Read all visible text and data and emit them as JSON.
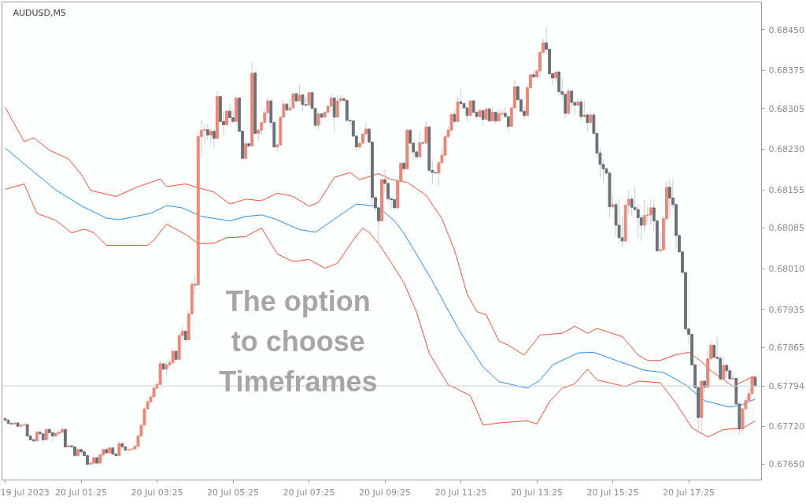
{
  "chart_data": {
    "type": "candlestick",
    "title": "AUDUSD,M5",
    "annotations": [
      "The option\nto choose\nTimeframes"
    ],
    "xlim": [
      "2023-07-19T23:20",
      "2023-07-20T19:20"
    ],
    "ylim": [
      0.67621,
      0.68501
    ],
    "xticks": [
      {
        "value": "2023-07-19T23:25",
        "label": "19 Jul 2023"
      },
      {
        "value": "2023-07-20T01:25",
        "label": "20 Jul 01:25"
      },
      {
        "value": "2023-07-20T03:25",
        "label": "20 Jul 03:25"
      },
      {
        "value": "2023-07-20T05:25",
        "label": "20 Jul 05:25"
      },
      {
        "value": "2023-07-20T07:25",
        "label": "20 Jul 07:25"
      },
      {
        "value": "2023-07-20T09:25",
        "label": "20 Jul 09:25"
      },
      {
        "value": "2023-07-20T11:25",
        "label": "20 Jul 11:25"
      },
      {
        "value": "2023-07-20T13:25",
        "label": "20 Jul 13:25"
      },
      {
        "value": "2023-07-20T15:25",
        "label": "20 Jul 15:25"
      },
      {
        "value": "2023-07-20T17:25",
        "label": "20 Jul 17:25"
      }
    ],
    "yticks": [
      {
        "value": 0.6765,
        "label": "0.67650"
      },
      {
        "value": 0.6772,
        "label": "0.67720"
      },
      {
        "value": 0.67865,
        "label": "0.67865"
      },
      {
        "value": 0.67935,
        "label": "0.67935"
      },
      {
        "value": 0.6801,
        "label": "0.68010"
      },
      {
        "value": 0.68085,
        "label": "0.68085"
      },
      {
        "value": 0.68155,
        "label": "0.68155"
      },
      {
        "value": 0.6823,
        "label": "0.68230"
      },
      {
        "value": 0.68305,
        "label": "0.68305"
      },
      {
        "value": 0.68375,
        "label": "0.68375"
      },
      {
        "value": 0.6845,
        "label": "0.68450"
      }
    ],
    "ref_lines": [
      {
        "axis": "y",
        "value": 0.67794,
        "label": "0.67794",
        "color": "#c8ccd4"
      }
    ],
    "x": [
      "2023-07-19T23:25",
      "2023-07-19T23:30",
      "2023-07-19T23:35",
      "2023-07-19T23:40",
      "2023-07-19T23:45",
      "2023-07-19T23:50",
      "2023-07-19T23:55",
      "2023-07-20T00:00",
      "2023-07-20T00:05",
      "2023-07-20T00:10",
      "2023-07-20T00:15",
      "2023-07-20T00:20",
      "2023-07-20T00:25",
      "2023-07-20T00:30",
      "2023-07-20T00:35",
      "2023-07-20T00:40",
      "2023-07-20T00:45",
      "2023-07-20T00:50",
      "2023-07-20T00:55",
      "2023-07-20T01:00",
      "2023-07-20T01:05",
      "2023-07-20T01:10",
      "2023-07-20T01:15",
      "2023-07-20T01:20",
      "2023-07-20T01:25",
      "2023-07-20T01:30",
      "2023-07-20T01:35",
      "2023-07-20T01:40",
      "2023-07-20T01:45",
      "2023-07-20T01:50",
      "2023-07-20T01:55",
      "2023-07-20T02:00",
      "2023-07-20T02:05",
      "2023-07-20T02:10",
      "2023-07-20T02:15",
      "2023-07-20T02:20",
      "2023-07-20T02:25",
      "2023-07-20T02:30",
      "2023-07-20T02:35",
      "2023-07-20T02:40",
      "2023-07-20T02:45",
      "2023-07-20T02:50",
      "2023-07-20T02:55",
      "2023-07-20T03:00",
      "2023-07-20T03:05",
      "2023-07-20T03:10",
      "2023-07-20T03:15",
      "2023-07-20T03:20",
      "2023-07-20T03:25",
      "2023-07-20T03:30",
      "2023-07-20T03:35",
      "2023-07-20T03:40",
      "2023-07-20T03:45",
      "2023-07-20T03:50",
      "2023-07-20T03:55",
      "2023-07-20T04:00",
      "2023-07-20T04:05",
      "2023-07-20T04:10",
      "2023-07-20T04:15",
      "2023-07-20T04:20",
      "2023-07-20T04:25",
      "2023-07-20T04:30",
      "2023-07-20T04:35",
      "2023-07-20T04:40",
      "2023-07-20T04:45",
      "2023-07-20T04:50",
      "2023-07-20T04:55",
      "2023-07-20T05:00",
      "2023-07-20T05:05",
      "2023-07-20T05:10",
      "2023-07-20T05:15",
      "2023-07-20T05:20",
      "2023-07-20T05:25",
      "2023-07-20T05:30",
      "2023-07-20T05:35",
      "2023-07-20T05:40",
      "2023-07-20T05:45",
      "2023-07-20T05:50",
      "2023-07-20T05:55",
      "2023-07-20T06:00",
      "2023-07-20T06:05",
      "2023-07-20T06:10",
      "2023-07-20T06:15",
      "2023-07-20T06:20",
      "2023-07-20T06:25",
      "2023-07-20T06:30",
      "2023-07-20T06:35",
      "2023-07-20T06:40",
      "2023-07-20T06:45",
      "2023-07-20T06:50",
      "2023-07-20T06:55",
      "2023-07-20T07:00",
      "2023-07-20T07:05",
      "2023-07-20T07:10",
      "2023-07-20T07:15",
      "2023-07-20T07:20",
      "2023-07-20T07:25",
      "2023-07-20T07:30",
      "2023-07-20T07:35",
      "2023-07-20T07:40",
      "2023-07-20T07:45",
      "2023-07-20T07:50",
      "2023-07-20T07:55",
      "2023-07-20T08:00",
      "2023-07-20T08:05",
      "2023-07-20T08:10",
      "2023-07-20T08:15",
      "2023-07-20T08:20",
      "2023-07-20T08:25",
      "2023-07-20T08:30",
      "2023-07-20T08:35",
      "2023-07-20T08:40",
      "2023-07-20T08:45",
      "2023-07-20T08:50",
      "2023-07-20T08:55",
      "2023-07-20T09:00",
      "2023-07-20T09:05",
      "2023-07-20T09:10",
      "2023-07-20T09:15",
      "2023-07-20T09:20",
      "2023-07-20T09:25",
      "2023-07-20T09:30",
      "2023-07-20T09:35",
      "2023-07-20T09:40",
      "2023-07-20T09:45",
      "2023-07-20T09:50",
      "2023-07-20T09:55",
      "2023-07-20T10:00",
      "2023-07-20T10:05",
      "2023-07-20T10:10",
      "2023-07-20T10:15",
      "2023-07-20T10:20",
      "2023-07-20T10:25",
      "2023-07-20T10:30",
      "2023-07-20T10:35",
      "2023-07-20T10:40",
      "2023-07-20T10:45",
      "2023-07-20T10:50",
      "2023-07-20T10:55",
      "2023-07-20T11:00",
      "2023-07-20T11:05",
      "2023-07-20T11:10",
      "2023-07-20T11:15",
      "2023-07-20T11:20",
      "2023-07-20T11:25",
      "2023-07-20T11:30",
      "2023-07-20T11:35",
      "2023-07-20T11:40",
      "2023-07-20T11:45",
      "2023-07-20T11:50",
      "2023-07-20T11:55",
      "2023-07-20T12:00",
      "2023-07-20T12:05",
      "2023-07-20T12:10",
      "2023-07-20T12:15",
      "2023-07-20T12:20",
      "2023-07-20T12:25",
      "2023-07-20T12:30",
      "2023-07-20T12:35",
      "2023-07-20T12:40",
      "2023-07-20T12:45",
      "2023-07-20T12:50",
      "2023-07-20T12:55",
      "2023-07-20T13:00",
      "2023-07-20T13:05",
      "2023-07-20T13:10",
      "2023-07-20T13:15",
      "2023-07-20T13:20",
      "2023-07-20T13:25",
      "2023-07-20T13:30",
      "2023-07-20T13:35",
      "2023-07-20T13:40",
      "2023-07-20T13:45",
      "2023-07-20T13:50",
      "2023-07-20T13:55",
      "2023-07-20T14:00",
      "2023-07-20T14:05",
      "2023-07-20T14:10",
      "2023-07-20T14:15",
      "2023-07-20T14:20",
      "2023-07-20T14:25",
      "2023-07-20T14:30",
      "2023-07-20T14:35",
      "2023-07-20T14:40",
      "2023-07-20T14:45",
      "2023-07-20T14:50",
      "2023-07-20T14:55",
      "2023-07-20T15:00",
      "2023-07-20T15:05",
      "2023-07-20T15:10",
      "2023-07-20T15:15",
      "2023-07-20T15:20",
      "2023-07-20T15:25",
      "2023-07-20T15:30",
      "2023-07-20T15:35",
      "2023-07-20T15:40",
      "2023-07-20T15:45",
      "2023-07-20T15:50",
      "2023-07-20T15:55",
      "2023-07-20T16:00",
      "2023-07-20T16:05",
      "2023-07-20T16:10",
      "2023-07-20T16:15",
      "2023-07-20T16:20",
      "2023-07-20T16:25",
      "2023-07-20T16:30",
      "2023-07-20T16:35",
      "2023-07-20T16:40",
      "2023-07-20T16:45",
      "2023-07-20T16:50",
      "2023-07-20T16:55",
      "2023-07-20T17:00",
      "2023-07-20T17:05",
      "2023-07-20T17:10",
      "2023-07-20T17:15",
      "2023-07-20T17:20",
      "2023-07-20T17:25",
      "2023-07-20T17:30",
      "2023-07-20T17:35",
      "2023-07-20T17:40",
      "2023-07-20T17:45",
      "2023-07-20T17:50",
      "2023-07-20T17:55",
      "2023-07-20T18:00",
      "2023-07-20T18:05",
      "2023-07-20T18:10",
      "2023-07-20T18:15",
      "2023-07-20T18:20",
      "2023-07-20T18:25",
      "2023-07-20T18:30",
      "2023-07-20T18:35",
      "2023-07-20T18:40",
      "2023-07-20T18:45",
      "2023-07-20T18:50",
      "2023-07-20T18:55",
      "2023-07-20T19:00",
      "2023-07-20T19:05",
      "2023-07-20T19:10"
    ],
    "ohlc": [
      [
        0.67734,
        0.67736,
        0.67729,
        0.67731
      ],
      [
        0.67731,
        0.67733,
        0.67723,
        0.67725
      ],
      [
        0.67725,
        0.67727,
        0.67722,
        0.67724
      ],
      [
        0.67724,
        0.67728,
        0.67722,
        0.67726
      ],
      [
        0.67726,
        0.67728,
        0.67718,
        0.6772
      ],
      [
        0.6772,
        0.67724,
        0.67718,
        0.67722
      ],
      [
        0.67722,
        0.67725,
        0.6772,
        0.67723
      ],
      [
        0.67723,
        0.67725,
        0.677,
        0.67702
      ],
      [
        0.67702,
        0.67704,
        0.67693,
        0.67695
      ],
      [
        0.67695,
        0.67697,
        0.6769,
        0.67693
      ],
      [
        0.67693,
        0.67711,
        0.67691,
        0.67709
      ],
      [
        0.67709,
        0.67711,
        0.67704,
        0.67706
      ],
      [
        0.67706,
        0.67708,
        0.67688,
        0.67695
      ],
      [
        0.67695,
        0.67716,
        0.67693,
        0.67714
      ],
      [
        0.67714,
        0.67716,
        0.67706,
        0.67708
      ],
      [
        0.67708,
        0.6771,
        0.6769,
        0.67702
      ],
      [
        0.67702,
        0.67709,
        0.677,
        0.67707
      ],
      [
        0.67707,
        0.67711,
        0.67705,
        0.67709
      ],
      [
        0.67709,
        0.67721,
        0.67707,
        0.67714
      ],
      [
        0.67714,
        0.67716,
        0.6768,
        0.67682
      ],
      [
        0.67682,
        0.67686,
        0.6768,
        0.67684
      ],
      [
        0.67684,
        0.67686,
        0.6768,
        0.67682
      ],
      [
        0.67682,
        0.67684,
        0.67664,
        0.67666
      ],
      [
        0.67666,
        0.67679,
        0.67664,
        0.67677
      ],
      [
        0.67677,
        0.67679,
        0.67671,
        0.67673
      ],
      [
        0.67673,
        0.67675,
        0.67664,
        0.67666
      ],
      [
        0.67666,
        0.67668,
        0.67645,
        0.6765
      ],
      [
        0.6765,
        0.67654,
        0.67647,
        0.67652
      ],
      [
        0.67652,
        0.67664,
        0.67648,
        0.67662
      ],
      [
        0.67662,
        0.67664,
        0.6765,
        0.67652
      ],
      [
        0.67652,
        0.67669,
        0.6765,
        0.67667
      ],
      [
        0.67667,
        0.67679,
        0.67665,
        0.67677
      ],
      [
        0.67677,
        0.67679,
        0.67669,
        0.67671
      ],
      [
        0.67671,
        0.67684,
        0.67669,
        0.6768
      ],
      [
        0.6768,
        0.67682,
        0.67667,
        0.67669
      ],
      [
        0.67669,
        0.67671,
        0.67664,
        0.67666
      ],
      [
        0.67666,
        0.67692,
        0.67664,
        0.67688
      ],
      [
        0.67688,
        0.6769,
        0.6768,
        0.67682
      ],
      [
        0.67682,
        0.67684,
        0.67674,
        0.67676
      ],
      [
        0.67676,
        0.67679,
        0.67674,
        0.67677
      ],
      [
        0.67677,
        0.6768,
        0.67675,
        0.67678
      ],
      [
        0.67678,
        0.67685,
        0.67676,
        0.67683
      ],
      [
        0.67683,
        0.67704,
        0.67681,
        0.67702
      ],
      [
        0.67702,
        0.67724,
        0.677,
        0.67722
      ],
      [
        0.67722,
        0.67754,
        0.6772,
        0.67752
      ],
      [
        0.67752,
        0.67769,
        0.6775,
        0.67765
      ],
      [
        0.67765,
        0.67778,
        0.67763,
        0.67774
      ],
      [
        0.67774,
        0.67794,
        0.67772,
        0.6779
      ],
      [
        0.6779,
        0.67801,
        0.67788,
        0.67797
      ],
      [
        0.67797,
        0.6784,
        0.67795,
        0.67835
      ],
      [
        0.67835,
        0.67837,
        0.67823,
        0.67825
      ],
      [
        0.67825,
        0.67838,
        0.67812,
        0.67833
      ],
      [
        0.67833,
        0.67841,
        0.67831,
        0.67837
      ],
      [
        0.67837,
        0.67863,
        0.67835,
        0.67858
      ],
      [
        0.67858,
        0.6786,
        0.6784,
        0.67843
      ],
      [
        0.67843,
        0.67892,
        0.67841,
        0.67887
      ],
      [
        0.67887,
        0.67903,
        0.67875,
        0.67895
      ],
      [
        0.67895,
        0.67897,
        0.67877,
        0.67879
      ],
      [
        0.67879,
        0.67935,
        0.67877,
        0.67927
      ],
      [
        0.67927,
        0.67987,
        0.67925,
        0.67981
      ],
      [
        0.67981,
        0.67999,
        0.67963,
        0.6798
      ],
      [
        0.6798,
        0.68262,
        0.67978,
        0.68253
      ],
      [
        0.68253,
        0.68285,
        0.68215,
        0.68265
      ],
      [
        0.68265,
        0.68277,
        0.6824,
        0.68266
      ],
      [
        0.68266,
        0.68277,
        0.68246,
        0.68256
      ],
      [
        0.68256,
        0.68268,
        0.6824,
        0.68263
      ],
      [
        0.68263,
        0.68266,
        0.68232,
        0.6825
      ],
      [
        0.6825,
        0.68336,
        0.68247,
        0.68327
      ],
      [
        0.68327,
        0.68329,
        0.68279,
        0.68281
      ],
      [
        0.68281,
        0.683,
        0.68255,
        0.68275
      ],
      [
        0.68275,
        0.68302,
        0.68273,
        0.683
      ],
      [
        0.683,
        0.68314,
        0.68286,
        0.68288
      ],
      [
        0.68288,
        0.68302,
        0.68279,
        0.68281
      ],
      [
        0.68281,
        0.68326,
        0.68279,
        0.68324
      ],
      [
        0.68324,
        0.68326,
        0.68261,
        0.68263
      ],
      [
        0.68263,
        0.68265,
        0.68211,
        0.68213
      ],
      [
        0.68213,
        0.6825,
        0.68211,
        0.6824
      ],
      [
        0.6824,
        0.68242,
        0.68234,
        0.68236
      ],
      [
        0.68236,
        0.6839,
        0.68234,
        0.6837
      ],
      [
        0.6837,
        0.68374,
        0.68257,
        0.68259
      ],
      [
        0.68259,
        0.68267,
        0.68244,
        0.68265
      ],
      [
        0.68265,
        0.68283,
        0.68255,
        0.68279
      ],
      [
        0.68279,
        0.68305,
        0.68277,
        0.68297
      ],
      [
        0.68297,
        0.68327,
        0.68295,
        0.68319
      ],
      [
        0.68319,
        0.68321,
        0.68267,
        0.68279
      ],
      [
        0.68279,
        0.68281,
        0.68232,
        0.68234
      ],
      [
        0.68234,
        0.6824,
        0.68224,
        0.68238
      ],
      [
        0.68238,
        0.68291,
        0.68236,
        0.68289
      ],
      [
        0.68289,
        0.68319,
        0.68286,
        0.68313
      ],
      [
        0.68313,
        0.68315,
        0.683,
        0.68302
      ],
      [
        0.68302,
        0.68323,
        0.683,
        0.68306
      ],
      [
        0.68306,
        0.68334,
        0.68304,
        0.68332
      ],
      [
        0.68332,
        0.68334,
        0.68317,
        0.68319
      ],
      [
        0.68319,
        0.68348,
        0.68317,
        0.6833
      ],
      [
        0.6833,
        0.68332,
        0.683,
        0.68312
      ],
      [
        0.68312,
        0.68326,
        0.68309,
        0.68311
      ],
      [
        0.68311,
        0.68336,
        0.68309,
        0.68334
      ],
      [
        0.68334,
        0.68336,
        0.68303,
        0.68305
      ],
      [
        0.68305,
        0.68307,
        0.68268,
        0.68274
      ],
      [
        0.68274,
        0.68297,
        0.68265,
        0.68295
      ],
      [
        0.68295,
        0.68297,
        0.68287,
        0.68289
      ],
      [
        0.68289,
        0.683,
        0.68287,
        0.68298
      ],
      [
        0.68298,
        0.68311,
        0.68296,
        0.68309
      ],
      [
        0.68309,
        0.6833,
        0.68307,
        0.68324
      ],
      [
        0.68324,
        0.68326,
        0.6826,
        0.68289
      ],
      [
        0.68289,
        0.6833,
        0.68287,
        0.68319
      ],
      [
        0.68319,
        0.6833,
        0.68317,
        0.68323
      ],
      [
        0.68323,
        0.68325,
        0.68318,
        0.6832
      ],
      [
        0.6832,
        0.68322,
        0.68281,
        0.68283
      ],
      [
        0.68283,
        0.68285,
        0.68273,
        0.68282
      ],
      [
        0.68282,
        0.68284,
        0.68252,
        0.68254
      ],
      [
        0.68254,
        0.68256,
        0.68227,
        0.68234
      ],
      [
        0.68234,
        0.68243,
        0.68229,
        0.68241
      ],
      [
        0.68241,
        0.6826,
        0.68239,
        0.68258
      ],
      [
        0.68258,
        0.68279,
        0.68256,
        0.68267
      ],
      [
        0.68267,
        0.68269,
        0.68241,
        0.68243
      ],
      [
        0.68243,
        0.68245,
        0.68129,
        0.68141
      ],
      [
        0.68141,
        0.68143,
        0.68115,
        0.68122
      ],
      [
        0.68122,
        0.68124,
        0.68059,
        0.68098
      ],
      [
        0.68098,
        0.68176,
        0.68096,
        0.68174
      ],
      [
        0.68174,
        0.68193,
        0.68149,
        0.68167
      ],
      [
        0.68167,
        0.68169,
        0.68131,
        0.68139
      ],
      [
        0.68139,
        0.68141,
        0.68118,
        0.68137
      ],
      [
        0.68137,
        0.68139,
        0.6812,
        0.68122
      ],
      [
        0.68122,
        0.68174,
        0.68118,
        0.68172
      ],
      [
        0.68172,
        0.68206,
        0.6817,
        0.68204
      ],
      [
        0.68204,
        0.68206,
        0.68186,
        0.68194
      ],
      [
        0.68194,
        0.68268,
        0.68192,
        0.68265
      ],
      [
        0.68265,
        0.68267,
        0.68239,
        0.68241
      ],
      [
        0.68241,
        0.68243,
        0.68212,
        0.68225
      ],
      [
        0.68225,
        0.68227,
        0.6821,
        0.68216
      ],
      [
        0.68216,
        0.68263,
        0.68214,
        0.68242
      ],
      [
        0.68242,
        0.68244,
        0.68239,
        0.68241
      ],
      [
        0.68241,
        0.68281,
        0.68239,
        0.68271
      ],
      [
        0.68271,
        0.68273,
        0.68189,
        0.68191
      ],
      [
        0.68191,
        0.68208,
        0.68165,
        0.68187
      ],
      [
        0.68187,
        0.68189,
        0.68184,
        0.68186
      ],
      [
        0.68186,
        0.68207,
        0.68163,
        0.68205
      ],
      [
        0.68205,
        0.68235,
        0.68203,
        0.68219
      ],
      [
        0.68219,
        0.68256,
        0.68217,
        0.68253
      ],
      [
        0.68253,
        0.68273,
        0.68251,
        0.68265
      ],
      [
        0.68265,
        0.68296,
        0.68263,
        0.68294
      ],
      [
        0.68294,
        0.68303,
        0.68279,
        0.68281
      ],
      [
        0.68281,
        0.68328,
        0.68279,
        0.68317
      ],
      [
        0.68317,
        0.68342,
        0.68312,
        0.68314
      ],
      [
        0.68314,
        0.68316,
        0.68304,
        0.68306
      ],
      [
        0.68306,
        0.68308,
        0.6828,
        0.68292
      ],
      [
        0.68292,
        0.68321,
        0.6829,
        0.68319
      ],
      [
        0.68319,
        0.68321,
        0.68296,
        0.68298
      ],
      [
        0.68298,
        0.683,
        0.68288,
        0.6829
      ],
      [
        0.6829,
        0.68303,
        0.68288,
        0.68301
      ],
      [
        0.68301,
        0.68303,
        0.68272,
        0.68285
      ],
      [
        0.68285,
        0.68306,
        0.68283,
        0.68304
      ],
      [
        0.68304,
        0.68306,
        0.6828,
        0.68282
      ],
      [
        0.68282,
        0.68307,
        0.6828,
        0.68298
      ],
      [
        0.68298,
        0.683,
        0.68277,
        0.68282
      ],
      [
        0.68282,
        0.68304,
        0.6828,
        0.68295
      ],
      [
        0.68295,
        0.68304,
        0.68285,
        0.68296
      ],
      [
        0.68296,
        0.68307,
        0.68288,
        0.6829
      ],
      [
        0.6829,
        0.68292,
        0.6826,
        0.68272
      ],
      [
        0.68272,
        0.68308,
        0.6827,
        0.68306
      ],
      [
        0.68306,
        0.68359,
        0.68304,
        0.68345
      ],
      [
        0.68345,
        0.68347,
        0.68319,
        0.68321
      ],
      [
        0.68321,
        0.68323,
        0.68298,
        0.683
      ],
      [
        0.683,
        0.68309,
        0.68283,
        0.68292
      ],
      [
        0.68292,
        0.68349,
        0.6829,
        0.68343
      ],
      [
        0.68343,
        0.6837,
        0.68336,
        0.68367
      ],
      [
        0.68367,
        0.68377,
        0.68361,
        0.68363
      ],
      [
        0.68363,
        0.68378,
        0.68361,
        0.68374
      ],
      [
        0.68374,
        0.6841,
        0.68361,
        0.68408
      ],
      [
        0.68408,
        0.68433,
        0.68406,
        0.68426
      ],
      [
        0.68426,
        0.68456,
        0.68405,
        0.68414
      ],
      [
        0.68414,
        0.68417,
        0.68362,
        0.68369
      ],
      [
        0.68369,
        0.68371,
        0.68348,
        0.68361
      ],
      [
        0.68361,
        0.68374,
        0.68354,
        0.68372
      ],
      [
        0.68372,
        0.68374,
        0.68328,
        0.68336
      ],
      [
        0.68336,
        0.68362,
        0.68324,
        0.68331
      ],
      [
        0.68331,
        0.68333,
        0.68288,
        0.68296
      ],
      [
        0.68296,
        0.68343,
        0.68294,
        0.68337
      ],
      [
        0.68337,
        0.68339,
        0.68307,
        0.68316
      ],
      [
        0.68316,
        0.68318,
        0.68294,
        0.68311
      ],
      [
        0.68311,
        0.68324,
        0.68309,
        0.68317
      ],
      [
        0.68317,
        0.68324,
        0.68281,
        0.6829
      ],
      [
        0.6829,
        0.68319,
        0.68288,
        0.68293
      ],
      [
        0.68293,
        0.68297,
        0.68263,
        0.68279
      ],
      [
        0.68279,
        0.68298,
        0.68275,
        0.68293
      ],
      [
        0.68293,
        0.68298,
        0.68257,
        0.68259
      ],
      [
        0.68259,
        0.68261,
        0.68215,
        0.68223
      ],
      [
        0.68223,
        0.68233,
        0.68178,
        0.68202
      ],
      [
        0.68202,
        0.68211,
        0.68171,
        0.68194
      ],
      [
        0.68194,
        0.68196,
        0.68184,
        0.68186
      ],
      [
        0.68186,
        0.68188,
        0.68104,
        0.68124
      ],
      [
        0.68124,
        0.68143,
        0.68119,
        0.68128
      ],
      [
        0.68128,
        0.68136,
        0.68068,
        0.6809
      ],
      [
        0.6809,
        0.68138,
        0.68058,
        0.68067
      ],
      [
        0.68067,
        0.68107,
        0.6805,
        0.68061
      ],
      [
        0.68061,
        0.68129,
        0.68059,
        0.68127
      ],
      [
        0.68127,
        0.68155,
        0.68111,
        0.68138
      ],
      [
        0.68138,
        0.68144,
        0.68107,
        0.68123
      ],
      [
        0.68123,
        0.68161,
        0.68115,
        0.68119
      ],
      [
        0.68119,
        0.68128,
        0.68066,
        0.68104
      ],
      [
        0.68104,
        0.68106,
        0.68061,
        0.6809
      ],
      [
        0.6809,
        0.68138,
        0.68075,
        0.68108
      ],
      [
        0.68108,
        0.68126,
        0.68095,
        0.68109
      ],
      [
        0.68109,
        0.68138,
        0.68091,
        0.68122
      ],
      [
        0.68122,
        0.68136,
        0.68079,
        0.68098
      ],
      [
        0.68098,
        0.681,
        0.68041,
        0.68043
      ],
      [
        0.68043,
        0.6808,
        0.68036,
        0.68045
      ],
      [
        0.68045,
        0.68108,
        0.6804,
        0.68102
      ],
      [
        0.68102,
        0.68171,
        0.681,
        0.6816
      ],
      [
        0.6816,
        0.68175,
        0.68109,
        0.6814
      ],
      [
        0.6814,
        0.68174,
        0.6812,
        0.68128
      ],
      [
        0.68128,
        0.6813,
        0.68049,
        0.68071
      ],
      [
        0.68071,
        0.68073,
        0.68039,
        0.68041
      ],
      [
        0.68041,
        0.68043,
        0.68001,
        0.68003
      ],
      [
        0.68003,
        0.68005,
        0.67895,
        0.67899
      ],
      [
        0.67899,
        0.67901,
        0.6787,
        0.67889
      ],
      [
        0.67889,
        0.67891,
        0.67831,
        0.67833
      ],
      [
        0.67833,
        0.67835,
        0.67789,
        0.67791
      ],
      [
        0.67791,
        0.67793,
        0.67714,
        0.67736
      ],
      [
        0.67736,
        0.67805,
        0.67713,
        0.67803
      ],
      [
        0.67803,
        0.67805,
        0.67782,
        0.67792
      ],
      [
        0.67792,
        0.6786,
        0.6779,
        0.67844
      ],
      [
        0.67844,
        0.67875,
        0.67842,
        0.67869
      ],
      [
        0.67869,
        0.67871,
        0.67845,
        0.67847
      ],
      [
        0.67847,
        0.67884,
        0.6784,
        0.67845
      ],
      [
        0.67845,
        0.67848,
        0.67805,
        0.67807
      ],
      [
        0.67807,
        0.67848,
        0.67805,
        0.67832
      ],
      [
        0.67832,
        0.67834,
        0.67809,
        0.67822
      ],
      [
        0.67822,
        0.67828,
        0.67805,
        0.67807
      ],
      [
        0.67807,
        0.67818,
        0.67805,
        0.67808
      ],
      [
        0.67808,
        0.6781,
        0.67759,
        0.67761
      ],
      [
        0.67761,
        0.67763,
        0.67705,
        0.67715
      ],
      [
        0.67715,
        0.67754,
        0.67708,
        0.67752
      ],
      [
        0.67752,
        0.67772,
        0.6775,
        0.67767
      ],
      [
        0.67767,
        0.6779,
        0.67765,
        0.6778
      ],
      [
        0.6778,
        0.67812,
        0.67778,
        0.6781
      ],
      [
        0.6781,
        0.67812,
        0.67792,
        0.67794
      ]
    ],
    "colors": [
      "#6b7178",
      "#6b7178",
      "#6b7178",
      "#ef8575",
      "#6b7178",
      "#ef8575",
      "#ef8575",
      "#6b7178",
      "#6b7178",
      "#6b7178",
      "#ef8575",
      "#6b7178",
      "#6b7178",
      "#ef8575",
      "#6b7178",
      "#6b7178",
      "#ef8575",
      "#ef8575",
      "#ef8575",
      "#6b7178",
      "#ef8575",
      "#6b7178",
      "#6b7178",
      "#ef8575",
      "#6b7178",
      "#6b7178",
      "#6b7178",
      "#ef8575",
      "#ef8575",
      "#6b7178",
      "#ef8575",
      "#ef8575",
      "#6b7178",
      "#ef8575",
      "#6b7178",
      "#6b7178",
      "#ef8575",
      "#6b7178",
      "#6b7178",
      "#ef8575",
      "#ef8575",
      "#ef8575",
      "#ef8575",
      "#ef8575",
      "#ef8575",
      "#ef8575",
      "#ef8575",
      "#ef8575",
      "#ef8575",
      "#ef8575",
      "#6b7178",
      "#ef8575",
      "#ef8575",
      "#ef8575",
      "#6b7178",
      "#ef8575",
      "#ef8575",
      "#6b7178",
      "#ef8575",
      "#ef8575",
      "#6b7178",
      "#ef8575",
      "#ef8575",
      "#ef8575",
      "#6b7178",
      "#ef8575",
      "#6b7178",
      "#ef8575",
      "#6b7178",
      "#6b7178",
      "#ef8575",
      "#6b7178",
      "#6b7178",
      "#ef8575",
      "#6b7178",
      "#6b7178",
      "#ef8575",
      "#6b7178",
      "#ef8575",
      "#6b7178",
      "#ef8575",
      "#ef8575",
      "#ef8575",
      "#ef8575",
      "#6b7178",
      "#6b7178",
      "#ef8575",
      "#ef8575",
      "#ef8575",
      "#6b7178",
      "#ef8575",
      "#ef8575",
      "#6b7178",
      "#ef8575",
      "#6b7178",
      "#6b7178",
      "#ef8575",
      "#6b7178",
      "#6b7178",
      "#ef8575",
      "#6b7178",
      "#ef8575",
      "#ef8575",
      "#ef8575",
      "#6b7178",
      "#ef8575",
      "#ef8575",
      "#6b7178",
      "#6b7178",
      "#6b7178",
      "#6b7178",
      "#6b7178",
      "#ef8575",
      "#ef8575",
      "#ef8575",
      "#6b7178",
      "#6b7178",
      "#6b7178",
      "#6b7178",
      "#ef8575",
      "#6b7178",
      "#6b7178",
      "#6b7178",
      "#6b7178",
      "#ef8575",
      "#ef8575",
      "#6b7178",
      "#ef8575",
      "#6b7178",
      "#6b7178",
      "#6b7178",
      "#ef8575",
      "#6b7178",
      "#ef8575",
      "#6b7178",
      "#6b7178",
      "#6b7178",
      "#ef8575",
      "#ef8575",
      "#ef8575",
      "#ef8575",
      "#ef8575",
      "#6b7178",
      "#ef8575",
      "#6b7178",
      "#6b7178",
      "#6b7178",
      "#ef8575",
      "#6b7178",
      "#6b7178",
      "#ef8575",
      "#6b7178",
      "#ef8575",
      "#6b7178",
      "#ef8575",
      "#6b7178",
      "#ef8575",
      "#ef8575",
      "#6b7178",
      "#6b7178",
      "#ef8575",
      "#ef8575",
      "#6b7178",
      "#6b7178",
      "#6b7178",
      "#ef8575",
      "#ef8575",
      "#6b7178",
      "#ef8575",
      "#ef8575",
      "#ef8575",
      "#6b7178",
      "#6b7178",
      "#6b7178",
      "#ef8575",
      "#6b7178",
      "#6b7178",
      "#6b7178",
      "#ef8575",
      "#6b7178",
      "#6b7178",
      "#ef8575",
      "#6b7178",
      "#ef8575",
      "#6b7178",
      "#ef8575",
      "#6b7178",
      "#6b7178",
      "#6b7178",
      "#6b7178",
      "#6b7178",
      "#6b7178",
      "#ef8575",
      "#6b7178",
      "#6b7178",
      "#6b7178",
      "#ef8575",
      "#ef8575",
      "#6b7178",
      "#6b7178",
      "#6b7178",
      "#6b7178",
      "#ef8575",
      "#ef8575",
      "#ef8575",
      "#6b7178",
      "#6b7178",
      "#ef8575",
      "#ef8575",
      "#ef8575",
      "#6b7178",
      "#6b7178",
      "#6b7178",
      "#6b7178",
      "#6b7178",
      "#6b7178",
      "#6b7178",
      "#6b7178",
      "#6b7178",
      "#6b7178",
      "#ef8575",
      "#6b7178",
      "#ef8575",
      "#ef8575",
      "#6b7178",
      "#6b7178",
      "#6b7178",
      "#ef8575",
      "#6b7178",
      "#6b7178",
      "#ef8575",
      "#6b7178",
      "#6b7178",
      "#ef8575",
      "#ef8575",
      "#ef8575",
      "#ef8575",
      "#6b7178"
    ],
    "series": [
      {
        "type": "line",
        "color": "#ff4d2e",
        "x": [
          "2023-07-19T23:25",
          "2023-07-19T23:55",
          "2023-07-20T00:10",
          "2023-07-20T00:35",
          "2023-07-20T01:05",
          "2023-07-20T01:25",
          "2023-07-20T01:40",
          "2023-07-20T02:20",
          "2023-07-20T02:55",
          "2023-07-20T03:30",
          "2023-07-20T03:40",
          "2023-07-20T04:10",
          "2023-07-20T04:30",
          "2023-07-20T04:55",
          "2023-07-20T05:20",
          "2023-07-20T05:45",
          "2023-07-20T06:10",
          "2023-07-20T06:35",
          "2023-07-20T07:00",
          "2023-07-20T07:25",
          "2023-07-20T07:40",
          "2023-07-20T08:05",
          "2023-07-20T08:30",
          "2023-07-20T08:45",
          "2023-07-20T09:15",
          "2023-07-20T09:35",
          "2023-07-20T10:00",
          "2023-07-20T10:30",
          "2023-07-20T10:55",
          "2023-07-20T11:15",
          "2023-07-20T11:35",
          "2023-07-20T11:50",
          "2023-07-20T12:05",
          "2023-07-20T12:25",
          "2023-07-20T12:40",
          "2023-07-20T13:05",
          "2023-07-20T13:30",
          "2023-07-20T14:05",
          "2023-07-20T14:25",
          "2023-07-20T14:45",
          "2023-07-20T15:00",
          "2023-07-20T15:40",
          "2023-07-20T16:05",
          "2023-07-20T16:20",
          "2023-07-20T16:40",
          "2023-07-20T17:05",
          "2023-07-20T17:25",
          "2023-07-20T17:45",
          "2023-07-20T18:00",
          "2023-07-20T18:35",
          "2023-07-20T19:05",
          "2023-07-20T19:10"
        ],
        "values": [
          0.68307,
          0.68244,
          0.68251,
          0.68228,
          0.68212,
          0.68184,
          0.68154,
          0.68143,
          0.68161,
          0.68175,
          0.68161,
          0.68166,
          0.68159,
          0.68151,
          0.68129,
          0.68138,
          0.68135,
          0.68149,
          0.68143,
          0.68125,
          0.68132,
          0.68178,
          0.68187,
          0.68174,
          0.68185,
          0.68174,
          0.68169,
          0.68145,
          0.68102,
          0.68044,
          0.67963,
          0.67931,
          0.67925,
          0.67877,
          0.67869,
          0.67851,
          0.67888,
          0.67891,
          0.67904,
          0.67891,
          0.679,
          0.67885,
          0.67851,
          0.67841,
          0.67841,
          0.67852,
          0.67856,
          0.67839,
          0.67822,
          0.67793,
          0.67811,
          0.67811
        ]
      },
      {
        "type": "line",
        "color": "#1e90ff",
        "x": [
          "2023-07-19T23:25",
          "2023-07-20T00:00",
          "2023-07-20T00:45",
          "2023-07-20T01:25",
          "2023-07-20T02:05",
          "2023-07-20T02:25",
          "2023-07-20T02:50",
          "2023-07-20T03:15",
          "2023-07-20T03:40",
          "2023-07-20T04:05",
          "2023-07-20T04:35",
          "2023-07-20T05:20",
          "2023-07-20T05:45",
          "2023-07-20T06:10",
          "2023-07-20T06:30",
          "2023-07-20T07:10",
          "2023-07-20T07:35",
          "2023-07-20T07:50",
          "2023-07-20T08:15",
          "2023-07-20T08:40",
          "2023-07-20T09:05",
          "2023-07-20T09:20",
          "2023-07-20T09:40",
          "2023-07-20T09:55",
          "2023-07-20T10:10",
          "2023-07-20T10:40",
          "2023-07-20T11:20",
          "2023-07-20T12:00",
          "2023-07-20T12:25",
          "2023-07-20T13:10",
          "2023-07-20T13:30",
          "2023-07-20T13:50",
          "2023-07-20T14:30",
          "2023-07-20T14:55",
          "2023-07-20T15:35",
          "2023-07-20T16:15",
          "2023-07-20T16:45",
          "2023-07-20T17:20",
          "2023-07-20T17:50",
          "2023-07-20T18:30",
          "2023-07-20T18:50",
          "2023-07-20T19:10"
        ],
        "values": [
          0.68232,
          0.68198,
          0.68155,
          0.68126,
          0.68103,
          0.681,
          0.68106,
          0.68112,
          0.68126,
          0.68122,
          0.68106,
          0.68098,
          0.68106,
          0.68109,
          0.68102,
          0.68082,
          0.68077,
          0.68089,
          0.68109,
          0.68129,
          0.68126,
          0.68118,
          0.68098,
          0.68075,
          0.68046,
          0.67987,
          0.67901,
          0.67829,
          0.67802,
          0.6779,
          0.67805,
          0.67833,
          0.67855,
          0.67856,
          0.67839,
          0.67823,
          0.67819,
          0.67796,
          0.67767,
          0.67755,
          0.6776,
          0.6777
        ]
      },
      {
        "type": "line",
        "color": "#ff4d2e",
        "x": [
          "2023-07-19T23:25",
          "2023-07-19T23:55",
          "2023-07-20T00:15",
          "2023-07-20T00:45",
          "2023-07-20T01:10",
          "2023-07-20T01:30",
          "2023-07-20T01:45",
          "2023-07-20T02:05",
          "2023-07-20T02:40",
          "2023-07-20T03:10",
          "2023-07-20T03:20",
          "2023-07-20T03:40",
          "2023-07-20T04:10",
          "2023-07-20T04:30",
          "2023-07-20T04:55",
          "2023-07-20T05:15",
          "2023-07-20T05:45",
          "2023-07-20T06:10",
          "2023-07-20T06:35",
          "2023-07-20T07:00",
          "2023-07-20T07:25",
          "2023-07-20T07:50",
          "2023-07-20T08:10",
          "2023-07-20T08:35",
          "2023-07-20T08:50",
          "2023-07-20T09:00",
          "2023-07-20T09:15",
          "2023-07-20T09:30",
          "2023-07-20T09:55",
          "2023-07-20T10:15",
          "2023-07-20T10:35",
          "2023-07-20T11:05",
          "2023-07-20T11:20",
          "2023-07-20T11:40",
          "2023-07-20T12:00",
          "2023-07-20T12:25",
          "2023-07-20T13:10",
          "2023-07-20T13:25",
          "2023-07-20T13:45",
          "2023-07-20T14:05",
          "2023-07-20T14:25",
          "2023-07-20T14:45",
          "2023-07-20T15:00",
          "2023-07-20T15:45",
          "2023-07-20T16:05",
          "2023-07-20T16:40",
          "2023-07-20T17:05",
          "2023-07-20T17:30",
          "2023-07-20T17:55",
          "2023-07-20T18:20",
          "2023-07-20T18:50",
          "2023-07-20T19:10"
        ],
        "values": [
          0.68156,
          0.68166,
          0.68112,
          0.68099,
          0.68076,
          0.68083,
          0.68076,
          0.68053,
          0.68053,
          0.68053,
          0.68063,
          0.68092,
          0.68073,
          0.68056,
          0.68057,
          0.68067,
          0.68069,
          0.68085,
          0.68037,
          0.68023,
          0.68027,
          0.68011,
          0.6802,
          0.68063,
          0.68085,
          0.68077,
          0.68056,
          0.6803,
          0.67984,
          0.6793,
          0.67854,
          0.67796,
          0.67788,
          0.67776,
          0.67722,
          0.67726,
          0.6773,
          0.67724,
          0.67765,
          0.6779,
          0.67798,
          0.67825,
          0.67805,
          0.67793,
          0.67803,
          0.678,
          0.67762,
          0.67717,
          0.677,
          0.67714,
          0.67716,
          0.6773
        ]
      }
    ]
  }
}
